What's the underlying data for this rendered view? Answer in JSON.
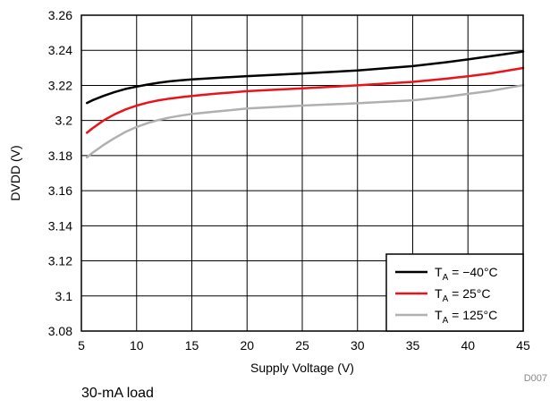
{
  "chart_data": {
    "type": "line",
    "title": "",
    "xlabel": "Supply Voltage (V)",
    "ylabel": "DVDD (V)",
    "xlim": [
      5,
      45
    ],
    "ylim": [
      3.08,
      3.26
    ],
    "x_ticks": [
      5,
      10,
      15,
      20,
      25,
      30,
      35,
      40,
      45
    ],
    "y_ticks": [
      3.08,
      3.1,
      3.12,
      3.14,
      3.16,
      3.18,
      3.2,
      3.22,
      3.24,
      3.26
    ],
    "x_tick_labels": [
      "5",
      "10",
      "15",
      "20",
      "25",
      "30",
      "35",
      "40",
      "45"
    ],
    "y_tick_labels": [
      "3.08",
      "3.1",
      "3.12",
      "3.14",
      "3.16",
      "3.18",
      "3.2",
      "3.22",
      "3.24",
      "3.26"
    ],
    "grid": true,
    "legend_position": "bottom-right",
    "series": [
      {
        "name": "T_A = −40°C",
        "legend_main": "T",
        "legend_sub": "A",
        "legend_rest": " = −40°C",
        "color": "#000000",
        "x": [
          5.5,
          6,
          7,
          8,
          9,
          10,
          11,
          12,
          13,
          14,
          15,
          17,
          20,
          25,
          30,
          35,
          38,
          40,
          42,
          45
        ],
        "y": [
          3.21,
          3.2115,
          3.214,
          3.2162,
          3.218,
          3.2193,
          3.2205,
          3.2215,
          3.2223,
          3.2229,
          3.2234,
          3.2242,
          3.2253,
          3.2268,
          3.2285,
          3.231,
          3.2332,
          3.2348,
          3.2366,
          3.2393
        ]
      },
      {
        "name": "T_A = 25°C",
        "legend_main": "T",
        "legend_sub": "A",
        "legend_rest": " = 25°C",
        "color": "#e8141a",
        "x": [
          5.5,
          6,
          7,
          8,
          9,
          10,
          11,
          12,
          13,
          14,
          15,
          17,
          20,
          25,
          30,
          35,
          38,
          40,
          42,
          45
        ],
        "y": [
          3.193,
          3.1955,
          3.2,
          3.2035,
          3.2063,
          3.2085,
          3.2102,
          3.2115,
          3.2125,
          3.2133,
          3.214,
          3.2152,
          3.2167,
          3.2183,
          3.22,
          3.222,
          3.2238,
          3.2252,
          3.2268,
          3.2299
        ]
      },
      {
        "name": "T_A = 125°C",
        "legend_main": "T",
        "legend_sub": "A",
        "legend_rest": " = 125°C",
        "color": "#b0b0b0",
        "x": [
          5.5,
          6,
          7,
          8,
          9,
          10,
          11,
          12,
          13,
          14,
          15,
          17,
          20,
          25,
          30,
          35,
          38,
          40,
          42,
          45
        ],
        "y": [
          3.179,
          3.1815,
          3.186,
          3.19,
          3.1935,
          3.1963,
          3.1985,
          3.2003,
          3.2017,
          3.2028,
          3.2037,
          3.205,
          3.2068,
          3.2085,
          3.2098,
          3.2115,
          3.2135,
          3.2152,
          3.2168,
          3.2201
        ]
      }
    ]
  },
  "figure_id": "D007",
  "caption": "30-mA load"
}
